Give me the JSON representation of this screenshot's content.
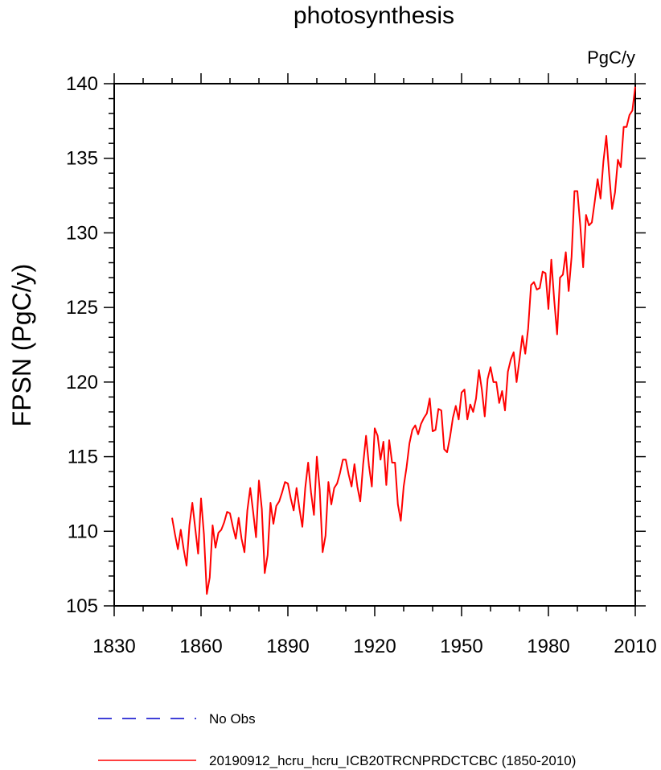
{
  "chart_data": {
    "type": "line",
    "title": "photosynthesis",
    "units_label": "PgC/y",
    "ylabel": "FPSN  (PgC/y)",
    "xlabel": "",
    "xlim": [
      1830,
      2010
    ],
    "ylim": [
      105,
      140
    ],
    "xticks": [
      1830,
      1860,
      1890,
      1920,
      1950,
      1980,
      2010
    ],
    "yticks": [
      105,
      110,
      115,
      120,
      125,
      130,
      135,
      140
    ],
    "grid": false,
    "legend_position": "bottom",
    "legend": [
      {
        "label": "No Obs",
        "color": "#0000cc",
        "style": "dashed"
      },
      {
        "label": "20190912_hcru_hcru_ICB20TRCNPRDCTCBC (1850-2010)",
        "color": "#ff0000",
        "style": "solid"
      }
    ],
    "series": [
      {
        "name": "20190912_hcru_hcru_ICB20TRCNPRDCTCBC (1850-2010)",
        "color": "#ff0000",
        "x": [
          1850,
          1851,
          1852,
          1853,
          1854,
          1855,
          1856,
          1857,
          1858,
          1859,
          1860,
          1861,
          1862,
          1863,
          1864,
          1865,
          1866,
          1867,
          1868,
          1869,
          1870,
          1871,
          1872,
          1873,
          1874,
          1875,
          1876,
          1877,
          1878,
          1879,
          1880,
          1881,
          1882,
          1883,
          1884,
          1885,
          1886,
          1887,
          1888,
          1889,
          1890,
          1891,
          1892,
          1893,
          1894,
          1895,
          1896,
          1897,
          1898,
          1899,
          1900,
          1901,
          1902,
          1903,
          1904,
          1905,
          1906,
          1907,
          1908,
          1909,
          1910,
          1911,
          1912,
          1913,
          1914,
          1915,
          1916,
          1917,
          1918,
          1919,
          1920,
          1921,
          1922,
          1923,
          1924,
          1925,
          1926,
          1927,
          1928,
          1929,
          1930,
          1931,
          1932,
          1933,
          1934,
          1935,
          1936,
          1937,
          1938,
          1939,
          1940,
          1941,
          1942,
          1943,
          1944,
          1945,
          1946,
          1947,
          1948,
          1949,
          1950,
          1951,
          1952,
          1953,
          1954,
          1955,
          1956,
          1957,
          1958,
          1959,
          1960,
          1961,
          1962,
          1963,
          1964,
          1965,
          1966,
          1967,
          1968,
          1969,
          1970,
          1971,
          1972,
          1973,
          1974,
          1975,
          1976,
          1977,
          1978,
          1979,
          1980,
          1981,
          1982,
          1983,
          1984,
          1985,
          1986,
          1987,
          1988,
          1989,
          1990,
          1991,
          1992,
          1993,
          1994,
          1995,
          1996,
          1997,
          1998,
          1999,
          2000,
          2001,
          2002,
          2003,
          2004,
          2005,
          2006,
          2007,
          2008,
          2009,
          2010
        ],
        "values": [
          110.9,
          109.8,
          108.8,
          110.1,
          108.8,
          107.7,
          110.4,
          111.9,
          110.2,
          108.5,
          112.2,
          109.8,
          105.8,
          106.9,
          110.4,
          108.9,
          109.9,
          110.1,
          110.6,
          111.3,
          111.2,
          110.3,
          109.5,
          110.9,
          109.5,
          108.6,
          111.4,
          112.9,
          111.3,
          109.6,
          113.4,
          111.5,
          107.2,
          108.4,
          111.9,
          110.5,
          111.7,
          112.0,
          112.6,
          113.3,
          113.2,
          112.2,
          111.4,
          112.9,
          111.5,
          110.3,
          112.9,
          114.6,
          112.6,
          111.1,
          115.0,
          112.8,
          108.6,
          109.7,
          113.3,
          111.8,
          112.9,
          113.2,
          113.9,
          114.8,
          114.8,
          113.8,
          113.0,
          114.5,
          113.0,
          112.0,
          114.5,
          116.4,
          114.4,
          113.0,
          116.9,
          116.4,
          114.8,
          116.0,
          113.1,
          116.1,
          114.6,
          114.6,
          111.8,
          110.7,
          113.0,
          114.3,
          115.9,
          116.8,
          117.1,
          116.5,
          117.2,
          117.6,
          117.9,
          118.9,
          116.7,
          116.8,
          118.2,
          118.1,
          115.5,
          115.3,
          116.3,
          117.6,
          118.4,
          117.5,
          119.3,
          119.5,
          117.5,
          118.5,
          118.0,
          118.9,
          120.8,
          119.5,
          117.7,
          120.2,
          121.0,
          120.0,
          120.0,
          118.6,
          119.4,
          118.1,
          120.7,
          121.5,
          122.0,
          120.0,
          121.5,
          123.1,
          121.9,
          123.6,
          126.5,
          126.7,
          126.2,
          126.3,
          127.4,
          127.3,
          124.9,
          128.2,
          125.5,
          123.2,
          127.0,
          127.2,
          128.7,
          126.1,
          128.4,
          132.8,
          132.8,
          130.5,
          127.7,
          131.2,
          130.5,
          130.7,
          132.1,
          133.6,
          132.3,
          134.8,
          136.5,
          133.9,
          131.6,
          132.7,
          134.9,
          134.4,
          137.1,
          137.1,
          137.9,
          138.2,
          139.8
        ]
      }
    ]
  }
}
